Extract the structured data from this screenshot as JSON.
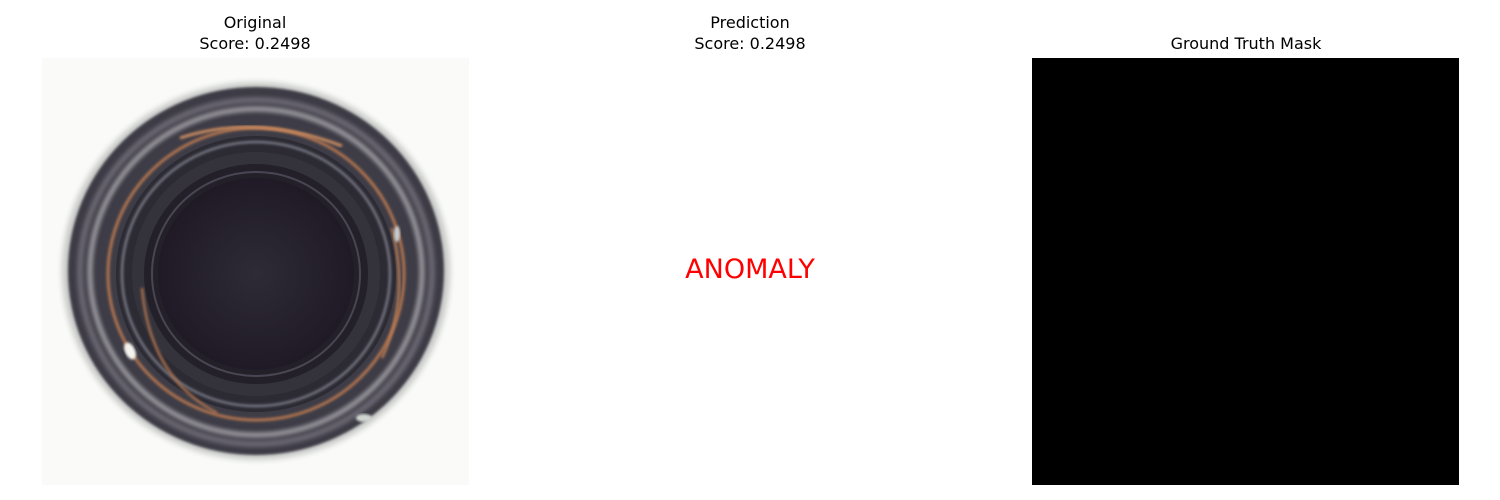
{
  "panels": {
    "original": {
      "title": "Original",
      "score": "Score: 0.2498"
    },
    "prediction": {
      "title": "Prediction",
      "score": "Score: 0.2498",
      "label": "ANOMALY",
      "label_color": "#ff0000"
    },
    "ground_truth": {
      "title": "Ground Truth Mask",
      "mask_color": "#000000"
    }
  }
}
